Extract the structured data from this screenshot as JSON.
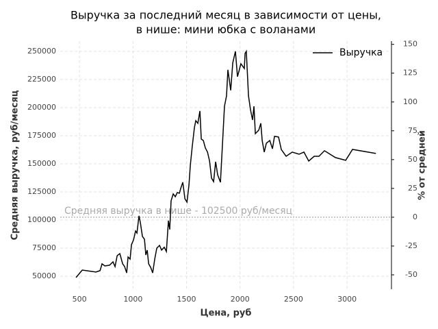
{
  "chart_data": {
    "type": "line",
    "title": [
      "Выручка за последний месяц в зависимости от цены,",
      "в нише: мини юбка с воланами"
    ],
    "xlabel": "Цена, руб",
    "ylabel": "Средняя выручка, руб/месяц",
    "y2label": "% от средней",
    "xlim": [
      320,
      3415
    ],
    "xticks": [
      500,
      1000,
      1500,
      2000,
      2500,
      3000
    ],
    "ylim": [
      38400,
      259100
    ],
    "yticks": [
      50000,
      75000,
      100000,
      125000,
      150000,
      175000,
      200000,
      225000,
      250000
    ],
    "y2lim": [
      -62.5,
      152.8
    ],
    "y2ticks": [
      -50,
      -25,
      0,
      25,
      50,
      75,
      100,
      125,
      150
    ],
    "grid": true,
    "legend": "upper right",
    "reference_line": {
      "value": 102500,
      "label": "Средняя выручка в нише - 102500 руб/месяц",
      "color": "#aaaaaa"
    },
    "series": [
      {
        "name": "Выручка",
        "color": "#000000",
        "x": [
          468,
          526,
          653,
          692,
          711,
          737,
          781,
          813,
          832,
          852,
          877,
          903,
          922,
          941,
          954,
          973,
          986,
          1005,
          1024,
          1037,
          1056,
          1069,
          1088,
          1107,
          1120,
          1133,
          1146,
          1165,
          1184,
          1203,
          1222,
          1248,
          1267,
          1292,
          1312,
          1331,
          1343,
          1356,
          1376,
          1395,
          1414,
          1433,
          1446,
          1465,
          1485,
          1504,
          1523,
          1536,
          1555,
          1574,
          1587,
          1606,
          1625,
          1638,
          1657,
          1676,
          1696,
          1715,
          1734,
          1753,
          1772,
          1791,
          1817,
          1836,
          1855,
          1874,
          1887,
          1913,
          1932,
          1957,
          1976,
          2008,
          2040,
          2047,
          2059,
          2079,
          2098,
          2117,
          2130,
          2143,
          2175,
          2194,
          2207,
          2226,
          2246,
          2278,
          2303,
          2322,
          2360,
          2386,
          2431,
          2488,
          2552,
          2597,
          2642,
          2693,
          2738,
          2789,
          2891,
          2987,
          3051,
          3269
        ],
        "values": [
          48800,
          55500,
          53700,
          54900,
          61000,
          59100,
          59800,
          62800,
          58500,
          68300,
          70100,
          61000,
          58500,
          53000,
          67100,
          65200,
          78000,
          82300,
          90200,
          88400,
          103700,
          97600,
          85400,
          82900,
          68900,
          73200,
          61000,
          57900,
          53000,
          65200,
          75000,
          77400,
          73200,
          75800,
          72000,
          99400,
          91500,
          117100,
          123200,
          120700,
          124400,
          123800,
          128100,
          133500,
          118900,
          115900,
          131100,
          149400,
          166500,
          182300,
          188400,
          186000,
          197000,
          172000,
          170700,
          164000,
          160400,
          152400,
          137200,
          134100,
          151800,
          140300,
          133500,
          167700,
          201200,
          210400,
          233600,
          215300,
          239700,
          250000,
          227500,
          239000,
          234800,
          248200,
          250000,
          210400,
          198200,
          189000,
          201200,
          176800,
          179900,
          186000,
          170700,
          160400,
          168300,
          170700,
          163400,
          174400,
          173800,
          162600,
          156700,
          160400,
          158500,
          160400,
          152400,
          156700,
          156700,
          161600,
          155500,
          153100,
          162800,
          159200
        ]
      }
    ]
  }
}
